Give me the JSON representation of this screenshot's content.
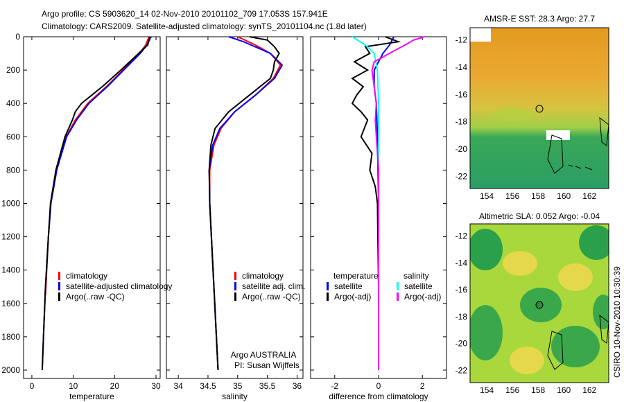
{
  "title": {
    "line1": "Argo profile: CS 5903620_14 02-Nov-2010 20101102_709 17.053S 157.941E",
    "line2": "Climatology: CARS2009. Satellite-adjusted climatology: synTS_20101104.nc (1.8d later)"
  },
  "footer": "CSIRO 10-Nov-2010 10:30:39",
  "colors": {
    "clim": "#ff0000",
    "sat": "#0000ff",
    "argo": "#000000",
    "sal_sat": "#00ffff",
    "sal_argo": "#ff00ff"
  },
  "chart_data": [
    {
      "type": "line",
      "name": "temperature",
      "xlabel": "temperature",
      "xlim": [
        -2,
        31
      ],
      "ylim": [
        2050,
        0
      ],
      "xticks": [
        "0",
        "10",
        "20",
        "30"
      ],
      "xtick_values": [
        0,
        10,
        20,
        30
      ],
      "yticks": [
        "0",
        "200",
        "400",
        "600",
        "800",
        "1000",
        "1200",
        "1400",
        "1600",
        "1800",
        "2000"
      ],
      "ytick_values": [
        0,
        200,
        400,
        600,
        800,
        1000,
        1200,
        1400,
        1600,
        1800,
        2000
      ],
      "legend": [
        "climatology",
        "satellite-adjusted climatology",
        "Argo(..raw -QC)"
      ],
      "series": [
        {
          "name": "climatology",
          "color": "#ff0000",
          "depth": [
            0,
            50,
            100,
            200,
            300,
            400,
            500,
            600,
            800,
            1000,
            1200,
            1500,
            1550
          ],
          "values": [
            28.3,
            27.5,
            26,
            22,
            18,
            13.5,
            10.5,
            8.3,
            6,
            4.6,
            4,
            3.4,
            3.3
          ]
        },
        {
          "name": "satellite-adjusted climatology",
          "color": "#0000ff",
          "depth": [
            0,
            50,
            100,
            200,
            300,
            400,
            500,
            600,
            800,
            1000,
            1200,
            1500,
            1800,
            2000
          ],
          "values": [
            28.8,
            27.8,
            26.2,
            22.2,
            18.2,
            13.8,
            10.8,
            8.4,
            6,
            4.6,
            4,
            3.3,
            2.8,
            2.5
          ]
        },
        {
          "name": "Argo(..raw -QC)",
          "color": "#000000",
          "depth": [
            0,
            50,
            100,
            200,
            300,
            400,
            450,
            500,
            600,
            800,
            1000,
            1200,
            1500,
            1800,
            2000
          ],
          "values": [
            28.5,
            28,
            25.8,
            21.5,
            17,
            12,
            10.5,
            9.8,
            8,
            5.8,
            4.5,
            4,
            3.3,
            2.8,
            2.5
          ]
        }
      ]
    },
    {
      "type": "line",
      "name": "salinity",
      "xlabel": "salinity",
      "xlim": [
        33.8,
        36.1
      ],
      "ylim": [
        2050,
        0
      ],
      "xticks": [
        "34",
        "34.5",
        "35",
        "35.5",
        "36"
      ],
      "xtick_values": [
        34,
        34.5,
        35,
        35.5,
        36
      ],
      "legend": [
        "climatology",
        "satellite adj. clim.",
        "Argo(..raw -QC)"
      ],
      "annotation": [
        "Argo AUSTRALIA",
        "PI: Susan Wijffels"
      ],
      "series": [
        {
          "name": "climatology",
          "color": "#ff0000",
          "depth": [
            0,
            50,
            100,
            170,
            250,
            350,
            450,
            550,
            650,
            800,
            1000,
            1500,
            2000
          ],
          "values": [
            35.0,
            35.3,
            35.55,
            35.72,
            35.6,
            35.3,
            34.95,
            34.72,
            34.6,
            34.53,
            34.53,
            34.6,
            34.67
          ]
        },
        {
          "name": "satellite adj. clim.",
          "color": "#0000ff",
          "depth": [
            0,
            30,
            100,
            170,
            250,
            350,
            450,
            550,
            650,
            800,
            1000,
            1500,
            2000
          ],
          "values": [
            34.85,
            35.1,
            35.55,
            35.75,
            35.62,
            35.3,
            34.95,
            34.7,
            34.58,
            34.52,
            34.53,
            34.6,
            34.67
          ]
        },
        {
          "name": "Argo(..raw -QC)",
          "color": "#000000",
          "depth": [
            0,
            20,
            60,
            100,
            150,
            200,
            250,
            350,
            450,
            550,
            650,
            800,
            1000,
            1500,
            2000
          ],
          "values": [
            35.2,
            35.5,
            35.62,
            35.7,
            35.62,
            35.6,
            35.55,
            35.2,
            34.85,
            34.62,
            34.55,
            34.52,
            34.53,
            34.6,
            34.67
          ]
        }
      ]
    },
    {
      "type": "line",
      "name": "difference",
      "xlabel": "difference from climatology",
      "xlim": [
        -3.1,
        3.1
      ],
      "ylim": [
        2050,
        0
      ],
      "xticks": [
        "-2",
        "0",
        "2"
      ],
      "xtick_values": [
        -2,
        0,
        2
      ],
      "legend_headers": [
        "temperature",
        "salinity"
      ],
      "legend": [
        "satellite",
        "Argo(-adj)",
        "satellite",
        "Argo(-adj)"
      ],
      "series": [
        {
          "name": "temperature satellite",
          "color": "#0000ff",
          "depth": [
            0,
            50,
            100,
            200,
            300,
            400,
            600,
            1000,
            2000
          ],
          "values": [
            0.7,
            0.5,
            0.2,
            -0.2,
            -0.2,
            -0.1,
            -0.05,
            0,
            0
          ]
        },
        {
          "name": "temperature Argo(-adj)",
          "color": "#000000",
          "depth": [
            0,
            30,
            60,
            100,
            150,
            200,
            250,
            300,
            350,
            400,
            450,
            500,
            600,
            700,
            800,
            900,
            1000,
            1500,
            2000
          ],
          "values": [
            0.3,
            0.9,
            -0.6,
            -0.4,
            -1.1,
            -0.5,
            -1.2,
            -0.7,
            -1.0,
            -1.2,
            -0.8,
            -0.5,
            -0.8,
            -0.3,
            -0.4,
            -0.15,
            -0.05,
            0,
            0
          ]
        },
        {
          "name": "salinity satellite",
          "color": "#00ffff",
          "depth": [
            0,
            50,
            100,
            200,
            400,
            600,
            1000,
            2000
          ],
          "values": [
            -1.2,
            -0.6,
            -0.2,
            -0.05,
            0,
            0,
            0,
            0
          ]
        },
        {
          "name": "salinity Argo(-adj)",
          "color": "#ff00ff",
          "depth": [
            0,
            20,
            50,
            100,
            150,
            200,
            300,
            400,
            500,
            600,
            700,
            800,
            1000,
            2000
          ],
          "values": [
            2.1,
            1.6,
            1.2,
            0.5,
            -0.2,
            -0.3,
            -0.2,
            -0.1,
            -0.15,
            -0.1,
            -0.05,
            0,
            0,
            0
          ]
        }
      ]
    },
    {
      "type": "heatmap",
      "name": "sst-map",
      "title": "AMSR-E SST: 28.3 Argo: 27.7",
      "xlim": [
        152.7,
        163.5
      ],
      "ylim": [
        -22.9,
        -11.1
      ],
      "xticks": [
        "154",
        "156",
        "158",
        "160",
        "162"
      ],
      "xtick_values": [
        154,
        156,
        158,
        160,
        162
      ],
      "yticks": [
        "-12",
        "-14",
        "-16",
        "-18",
        "-20",
        "-22"
      ],
      "ytick_values": [
        -12,
        -14,
        -16,
        -18,
        -20,
        -22
      ],
      "marker": {
        "lon": 157.941,
        "lat": -17.053
      }
    },
    {
      "type": "heatmap",
      "name": "sla-map",
      "title": "Altimetric SLA: 0.052 Argo: -0.04",
      "xlim": [
        152.7,
        163.5
      ],
      "ylim": [
        -22.9,
        -11.1
      ],
      "xticks": [
        "154",
        "156",
        "158",
        "160",
        "162"
      ],
      "xtick_values": [
        154,
        156,
        158,
        160,
        162
      ],
      "yticks": [
        "-12",
        "-14",
        "-16",
        "-18",
        "-20",
        "-22"
      ],
      "ytick_values": [
        -12,
        -14,
        -16,
        -18,
        -20,
        -22
      ],
      "marker": {
        "lon": 157.941,
        "lat": -17.053
      }
    }
  ]
}
